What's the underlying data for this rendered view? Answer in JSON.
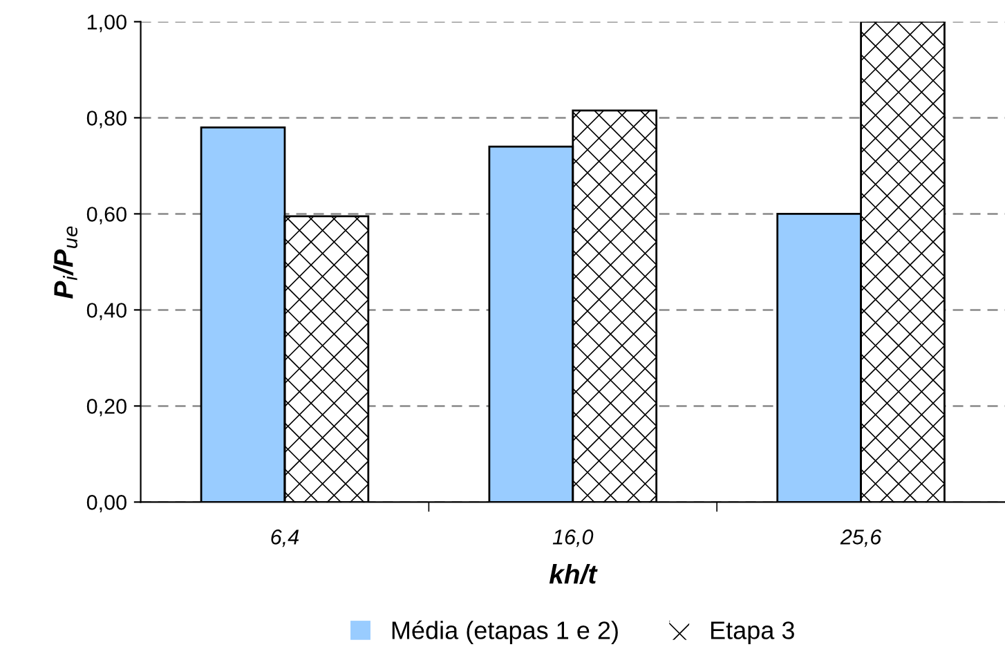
{
  "chart_data": {
    "type": "bar",
    "xlabel": "kh/t",
    "ylabel": "P$_{i}$/P$_{ue}$",
    "categories": [
      "6,4",
      "16,0",
      "25,6"
    ],
    "series": [
      {
        "name": "Média (etapas 1 e 2)",
        "color": "#99ccff",
        "values": [
          0.78,
          0.74,
          0.6
        ]
      },
      {
        "name": "Etapa 3",
        "color": "#ffffff",
        "values": [
          0.595,
          0.815,
          1.0
        ]
      }
    ],
    "ylim": [
      0,
      1
    ],
    "yticks": [
      {
        "value": 0,
        "label": "0,00"
      },
      {
        "value": 0.2,
        "label": "0,20"
      },
      {
        "value": 0.4,
        "label": "0,40"
      },
      {
        "value": 0.6,
        "label": "0,60"
      },
      {
        "value": 0.8,
        "label": "0,80"
      },
      {
        "value": 1,
        "label": "1,00"
      }
    ],
    "grid": "y",
    "legend": "bottom"
  }
}
